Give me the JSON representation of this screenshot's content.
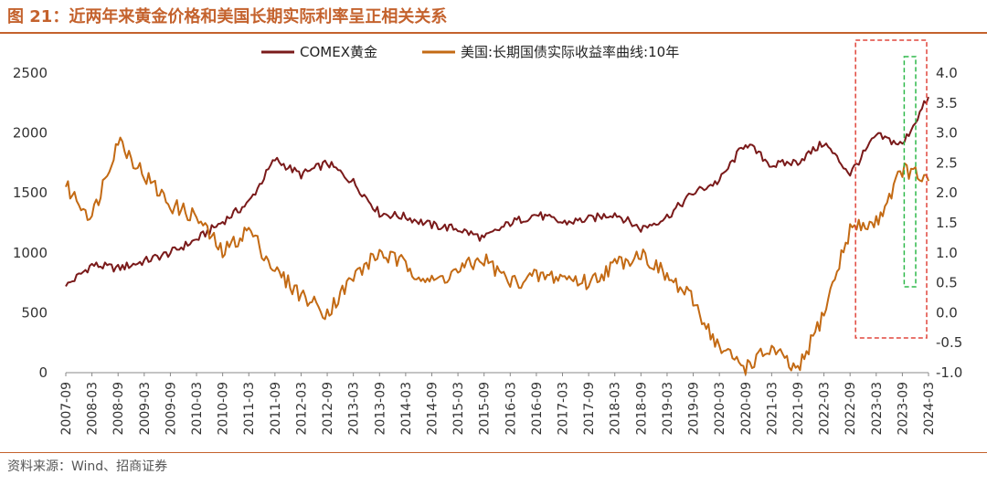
{
  "title": "图 21：近两年来黄金价格和美国长期实际利率呈正相关关系",
  "source": "资料来源：Wind、招商证券",
  "chart_data": {
    "type": "line",
    "x_ticks": [
      "2007-09",
      "2008-03",
      "2008-09",
      "2009-03",
      "2009-09",
      "2010-03",
      "2010-09",
      "2011-03",
      "2011-09",
      "2012-03",
      "2012-09",
      "2013-03",
      "2013-09",
      "2014-03",
      "2014-09",
      "2015-03",
      "2015-09",
      "2016-03",
      "2016-09",
      "2017-03",
      "2017-09",
      "2018-03",
      "2018-09",
      "2019-03",
      "2019-09",
      "2020-03",
      "2020-09",
      "2021-03",
      "2021-09",
      "2022-03",
      "2022-09",
      "2023-03",
      "2023-09",
      "2024-03"
    ],
    "y_left": {
      "ylim": [
        0,
        2500
      ],
      "ticks": [
        "0",
        "500",
        "1000",
        "1500",
        "2000",
        "2500"
      ]
    },
    "y_right": {
      "ylim": [
        -1.0,
        4.0
      ],
      "ticks": [
        "-1.0",
        "-0.5",
        "0.0",
        "0.5",
        "1.0",
        "1.5",
        "2.0",
        "2.5",
        "3.0",
        "3.5",
        "4.0"
      ]
    },
    "legend_position": "top",
    "series": [
      {
        "name": "COMEX黄金",
        "axis": "left",
        "color": "#7a1a1a",
        "values": [
          720,
          900,
          870,
          930,
          1000,
          1110,
          1260,
          1420,
          1780,
          1650,
          1750,
          1590,
          1330,
          1300,
          1230,
          1200,
          1120,
          1250,
          1320,
          1250,
          1280,
          1330,
          1200,
          1300,
          1500,
          1600,
          1920,
          1730,
          1760,
          1920,
          1660,
          1980,
          1900,
          2300
        ]
      },
      {
        "name": "美国:长期国债实际收益率曲线:10年",
        "axis": "right",
        "color": "#c36a14",
        "values": [
          2.1,
          1.6,
          2.9,
          2.3,
          1.8,
          1.6,
          1.0,
          1.4,
          0.7,
          0.3,
          0.0,
          0.6,
          1.0,
          0.8,
          0.5,
          0.7,
          0.9,
          0.5,
          0.6,
          0.6,
          0.5,
          0.8,
          1.0,
          0.6,
          0.2,
          -0.6,
          -0.9,
          -0.6,
          -1.0,
          0.0,
          1.4,
          1.5,
          2.4,
          2.2
        ]
      }
    ]
  },
  "annotations": [
    {
      "label": "red-dashed-box",
      "color": "#e0473d",
      "from_tick": "2022-09",
      "to_tick": "2024-03"
    },
    {
      "label": "green-dashed-box",
      "color": "#2eb84a",
      "from_tick": "2023-09",
      "to_tick": "2024-03"
    }
  ]
}
